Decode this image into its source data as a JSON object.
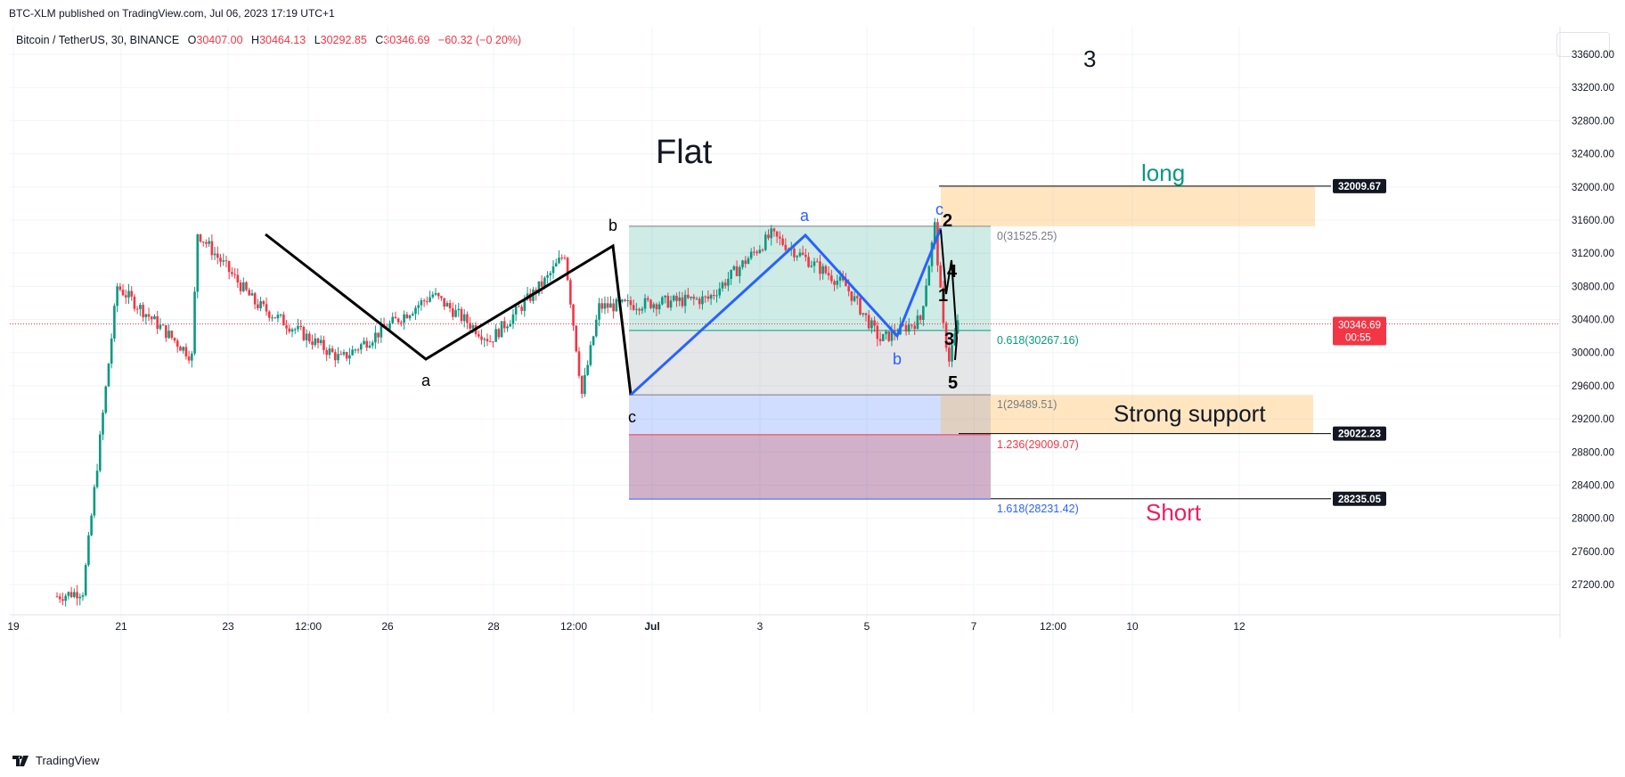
{
  "header": {
    "published": "BTC-XLM published on TradingView.com, Jul 06, 2023 17:19 UTC+1"
  },
  "legend": {
    "symbol": "Bitcoin / TetherUS, 30, BINANCE",
    "o_label": "O",
    "o_value": "30407.00",
    "h_label": "H",
    "h_value": "30464.13",
    "l_label": "L",
    "l_value": "30292.85",
    "c_label": "C",
    "c_value": "30346.69",
    "change": "−60.32 (−0.20%)"
  },
  "footer": {
    "brand": "TradingView"
  },
  "colors": {
    "up": "#089981",
    "down": "#f23645",
    "black_wave": "#000000",
    "blue_wave": "#2962ff",
    "fib_green": "rgba(8,153,129,0.2)",
    "fib_gray": "rgba(150,155,165,0.25)",
    "fib_blue": "rgba(41,98,255,0.22)",
    "fib_purple": "rgba(123,31,101,0.35)",
    "zone_orange": "rgba(255,183,77,0.35)"
  },
  "chart_data": {
    "type": "candlestick",
    "price_axis": {
      "ticks": [
        "33600.00",
        "33200.00",
        "32800.00",
        "32400.00",
        "32000.00",
        "31600.00",
        "31200.00",
        "30800.00",
        "30400.00",
        "30000.00",
        "29600.00",
        "29200.00",
        "28800.00",
        "28400.00",
        "28000.00",
        "27600.00",
        "27200.00"
      ],
      "ylim": [
        26850,
        33850
      ],
      "tick_values": [
        33600,
        33200,
        32800,
        32400,
        32000,
        31600,
        31200,
        30800,
        30400,
        30000,
        29600,
        29200,
        28800,
        28400,
        28000,
        27600,
        27200
      ]
    },
    "time_axis": {
      "labels": [
        "19",
        "21",
        "23",
        "12:00",
        "26",
        "28",
        "12:00",
        "Jul",
        "3",
        "5",
        "7",
        "12:00",
        "10",
        "12"
      ]
    },
    "current_price": {
      "value": "30346.69",
      "countdown": "00:55"
    },
    "price_markers": [
      {
        "label": "32009.67",
        "value": 32009.67
      },
      {
        "label": "29022.23",
        "value": 29022.23
      },
      {
        "label": "28235.05",
        "value": 28235.05
      }
    ],
    "fib_levels": [
      {
        "label": "0(31525.25)",
        "value": 31525.25,
        "color": "#787b86"
      },
      {
        "label": "0.618(30267.16)",
        "value": 30267.16,
        "color": "#089981"
      },
      {
        "label": "1(29489.51)",
        "value": 29489.51,
        "color": "#787b86"
      },
      {
        "label": "1.236(29009.07)",
        "value": 29009.07,
        "color": "#f23645"
      },
      {
        "label": "1.618(28231.42)",
        "value": 28231.42,
        "color": "#2962ff"
      }
    ],
    "annotations": {
      "flat": "Flat",
      "three_top": "3",
      "long": "long",
      "strong_support": "Strong support",
      "short": "Short",
      "black_a": "a",
      "black_b": "b",
      "black_c": "c",
      "blue_a": "a",
      "blue_b": "b",
      "blue_c": "c",
      "n1": "1",
      "n2": "2",
      "n3": "3",
      "n4": "4",
      "n5": "5"
    },
    "black_wave": [
      [
        30000,
        31450
      ],
      [
        30000,
        29920
      ],
      [
        30000,
        31300
      ],
      [
        30000,
        29500
      ]
    ],
    "blue_wave": [
      [
        29500,
        31420
      ],
      [
        30130,
        31525
      ]
    ],
    "segments": [
      {
        "from": 27050,
        "to": 27120,
        "n": 10
      },
      {
        "from": 27100,
        "to": 30800,
        "n": 12
      },
      {
        "from": 30800,
        "to": 29950,
        "n": 26
      },
      {
        "from": 29950,
        "to": 31450,
        "n": 2
      },
      {
        "from": 31450,
        "to": 30600,
        "n": 20
      },
      {
        "from": 30600,
        "to": 29920,
        "n": 30
      },
      {
        "from": 29920,
        "to": 30700,
        "n": 32
      },
      {
        "from": 30700,
        "to": 30150,
        "n": 20
      },
      {
        "from": 30150,
        "to": 30900,
        "n": 20
      },
      {
        "from": 30900,
        "to": 31200,
        "n": 6
      },
      {
        "from": 31200,
        "to": 29500,
        "n": 6
      },
      {
        "from": 29500,
        "to": 30550,
        "n": 6
      },
      {
        "from": 30550,
        "to": 30650,
        "n": 38
      },
      {
        "from": 30650,
        "to": 31420,
        "n": 22
      },
      {
        "from": 31420,
        "to": 30800,
        "n": 26
      },
      {
        "from": 30800,
        "to": 30150,
        "n": 12
      },
      {
        "from": 30150,
        "to": 30400,
        "n": 14
      },
      {
        "from": 30400,
        "to": 31525,
        "n": 5
      },
      {
        "from": 31525,
        "to": 30300,
        "n": 3
      },
      {
        "from": 30300,
        "to": 29930,
        "n": 2
      },
      {
        "from": 29930,
        "to": 30346,
        "n": 3
      }
    ]
  }
}
